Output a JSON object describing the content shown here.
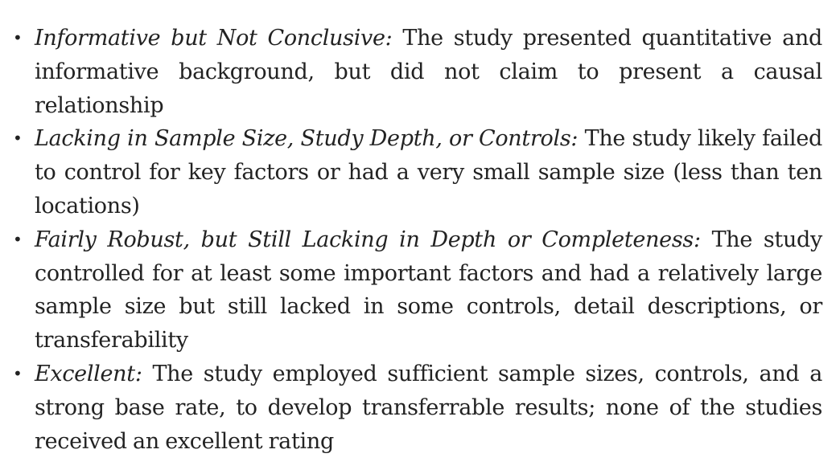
{
  "items": [
    {
      "term": "Informative but Not Conclusive:",
      "description": "The study presented quantitative and informative background, but did not claim to present a causal relationship"
    },
    {
      "term": "Lacking in Sample Size, Study Depth, or Controls:",
      "description": "The study likely failed to control for key factors or had a very small sample size (less than ten locations)"
    },
    {
      "term": "Fairly Robust, but Still Lacking in Depth or Completeness:",
      "description": "The study controlled for at least some important factors and had a relatively large sample size but still lacked in some controls, detail descriptions, or transferability"
    },
    {
      "term": "Excellent:",
      "description": "The study employed sufficient sample sizes, controls, and a strong base rate, to develop transferrable results; none of the studies received an excellent rating"
    }
  ]
}
